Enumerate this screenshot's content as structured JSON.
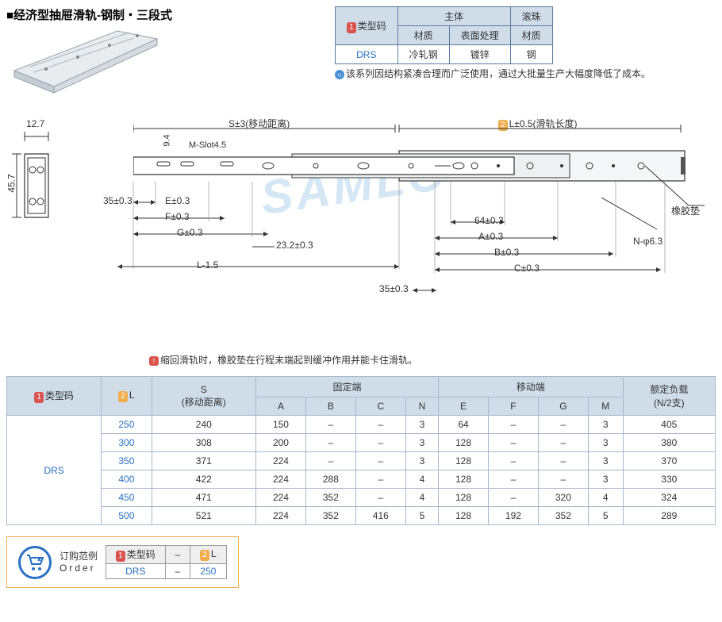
{
  "title": "■经济型抽屉滑轨-钢制・三段式",
  "material_table": {
    "type_code_label": "类型码",
    "group_main": "主体",
    "group_ball": "滚珠",
    "col_material": "材质",
    "col_surface": "表面处理",
    "code": "DRS",
    "main_material": "冷轧钢",
    "main_surface": "镀锌",
    "ball_material": "钢"
  },
  "top_note": "该系列因结构紧凑合理而广泛使用，通过大批量生产大幅度降低了成本。",
  "watermark_text": "SAMLO",
  "diagram": {
    "dim_12_7": "12.7",
    "dim_45_7": "45.7",
    "label_s": "S±3(移动距离)",
    "label_l": "L±0.5(滑轨长度)",
    "dim_9_4": "9.4",
    "dim_mslot": "M-Slot4.5",
    "dim_35": "35±0.3",
    "dim_e": "E±0.3",
    "dim_f": "F±0.3",
    "dim_g": "G±0.3",
    "dim_l15": "L-1.5",
    "dim_23_2": "23.2±0.3",
    "dim_64": "64±0.3",
    "dim_a": "A±0.3",
    "dim_b": "B±0.3",
    "dim_c": "C±0.3",
    "dim_35b": "35±0.3",
    "label_rubber": "橡胶垫",
    "label_n": "N-φ6.3"
  },
  "diagram_note": "缩回滑轨时，橡胶垫在行程末端起到缓冲作用并能卡住滑轨。",
  "spec_table": {
    "hdr_type": "类型码",
    "hdr_l": "L",
    "hdr_s": "S\n(移动距离)",
    "hdr_fixed": "固定端",
    "hdr_moving": "移动端",
    "hdr_load": "额定负载\n(N/2支)",
    "cols_fixed": [
      "A",
      "B",
      "C",
      "N"
    ],
    "cols_moving": [
      "E",
      "F",
      "G",
      "M"
    ],
    "type_code": "DRS",
    "rows": [
      {
        "L": "250",
        "S": "240",
        "A": "150",
        "B": "–",
        "C": "–",
        "N": "3",
        "E": "64",
        "F": "–",
        "G": "–",
        "M": "3",
        "load": "405"
      },
      {
        "L": "300",
        "S": "308",
        "A": "200",
        "B": "–",
        "C": "–",
        "N": "3",
        "E": "128",
        "F": "–",
        "G": "–",
        "M": "3",
        "load": "380"
      },
      {
        "L": "350",
        "S": "371",
        "A": "224",
        "B": "–",
        "C": "–",
        "N": "3",
        "E": "128",
        "F": "–",
        "G": "–",
        "M": "3",
        "load": "370"
      },
      {
        "L": "400",
        "S": "422",
        "A": "224",
        "B": "288",
        "C": "–",
        "N": "4",
        "E": "128",
        "F": "–",
        "G": "–",
        "M": "3",
        "load": "330"
      },
      {
        "L": "450",
        "S": "471",
        "A": "224",
        "B": "352",
        "C": "–",
        "N": "4",
        "E": "128",
        "F": "–",
        "G": "320",
        "M": "4",
        "load": "324"
      },
      {
        "L": "500",
        "S": "521",
        "A": "224",
        "B": "352",
        "C": "416",
        "N": "5",
        "E": "128",
        "F": "192",
        "G": "352",
        "M": "5",
        "load": "289"
      }
    ]
  },
  "order": {
    "label_cn": "订购范例",
    "label_en": "Order",
    "hdr_type": "类型码",
    "hdr_l": "L",
    "dash": "–",
    "val_type": "DRS",
    "val_l": "250"
  },
  "colors": {
    "header_bg": "#d0dde8",
    "border": "#5a7aa0",
    "link": "#2a70c2",
    "badge1": "#d9534f",
    "badge2": "#f0ad4e",
    "watermark": "#d5e6f5"
  }
}
